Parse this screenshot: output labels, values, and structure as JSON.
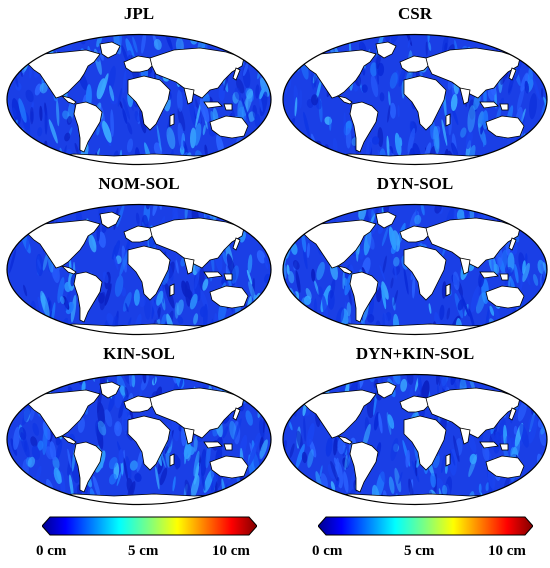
{
  "panels": [
    {
      "title": "JPL"
    },
    {
      "title": "CSR"
    },
    {
      "title": "NOM-SOL"
    },
    {
      "title": "DYN-SOL"
    },
    {
      "title": "KIN-SOL"
    },
    {
      "title": "DYN+KIN-SOL"
    }
  ],
  "colorbar": {
    "colormap": "jet",
    "range": [
      0,
      10
    ],
    "ticks": [
      "0 cm",
      "5 cm",
      "10 cm"
    ]
  },
  "colors": {
    "ocean_base": "#1a3fe6",
    "land": "#ffffff",
    "coast": "#000000"
  }
}
